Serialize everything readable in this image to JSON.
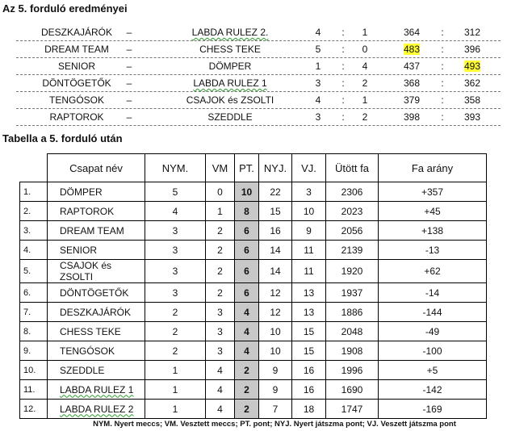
{
  "results_title": "Az 5. forduló eredményei",
  "results": [
    {
      "home": "DESZKAJÁRÓK",
      "sep": "–",
      "away": "LABDA RULEZ 2.",
      "g1": "4",
      "g2": "1",
      "p1": "364",
      "p2": "312",
      "hl": ""
    },
    {
      "home": "DREAM TEAM",
      "sep": "–",
      "away": "CHESS TEKE",
      "g1": "5",
      "g2": "0",
      "p1": "483",
      "p2": "396",
      "hl": "p1"
    },
    {
      "home": "SENIOR",
      "sep": "–",
      "away": "DÖMPER",
      "g1": "1",
      "g2": "4",
      "p1": "437",
      "p2": "493",
      "hl": "p2"
    },
    {
      "home": "DÖNTÖGETŐK",
      "sep": "–",
      "away": "LABDA RULEZ 1",
      "g1": "3",
      "g2": "2",
      "p1": "368",
      "p2": "362",
      "hl": ""
    },
    {
      "home": "TENGÓSOK",
      "sep": "–",
      "away": "CSAJOK és ZSOLTI",
      "g1": "4",
      "g2": "1",
      "p1": "379",
      "p2": "358",
      "hl": ""
    },
    {
      "home": "RAPTOROK",
      "sep": "–",
      "away": "SZEDDLE",
      "g1": "3",
      "g2": "2",
      "p1": "398",
      "p2": "393",
      "hl": ""
    }
  ],
  "colon": ":",
  "highlight_color": "#ffff33",
  "table_title": "Tabella a 5. forduló után",
  "headers": [
    "Csapat név",
    "NYM.",
    "VM",
    "PT.",
    "NYJ.",
    "VJ.",
    "Ütött fa",
    "Fa arány"
  ],
  "standings": [
    [
      "1.",
      "DÖMPER",
      "5",
      "0",
      "10",
      "22",
      "3",
      "2306",
      "+357"
    ],
    [
      "2.",
      "RAPTOROK",
      "4",
      "1",
      "8",
      "15",
      "10",
      "2023",
      "+45"
    ],
    [
      "3.",
      "DREAM TEAM",
      "3",
      "2",
      "6",
      "16",
      "9",
      "2056",
      "+138"
    ],
    [
      "4.",
      "SENIOR",
      "3",
      "2",
      "6",
      "14",
      "11",
      "2139",
      "-13"
    ],
    [
      "5.",
      "CSAJOK és ZSOLTI",
      "3",
      "2",
      "6",
      "14",
      "11",
      "1920",
      "+62"
    ],
    [
      "6.",
      "DÖNTÖGETŐK",
      "3",
      "2",
      "6",
      "12",
      "13",
      "1937",
      "-14"
    ],
    [
      "7.",
      "DESZKAJÁRÓK",
      "2",
      "3",
      "4",
      "12",
      "13",
      "1886",
      "-144"
    ],
    [
      "8.",
      "CHESS TEKE",
      "2",
      "3",
      "4",
      "10",
      "15",
      "2048",
      "-49"
    ],
    [
      "9.",
      "TENGÓSOK",
      "2",
      "3",
      "4",
      "10",
      "15",
      "1908",
      "-100"
    ],
    [
      "10.",
      "SZEDDLE",
      "1",
      "4",
      "2",
      "9",
      "16",
      "1996",
      "+5"
    ],
    [
      "11.",
      "LABDA RULEZ 1",
      "1",
      "4",
      "2",
      "9",
      "16",
      "1690",
      "-142"
    ],
    [
      "12.",
      "LABDA RULEZ 2",
      "1",
      "4",
      "2",
      "7",
      "18",
      "1747",
      "-169"
    ]
  ],
  "footnote": "NYM. Nyert meccs; VM. Vesztett meccs; PT. pont; NYJ. Nyert játszma pont; VJ. Veszett játszma pont"
}
